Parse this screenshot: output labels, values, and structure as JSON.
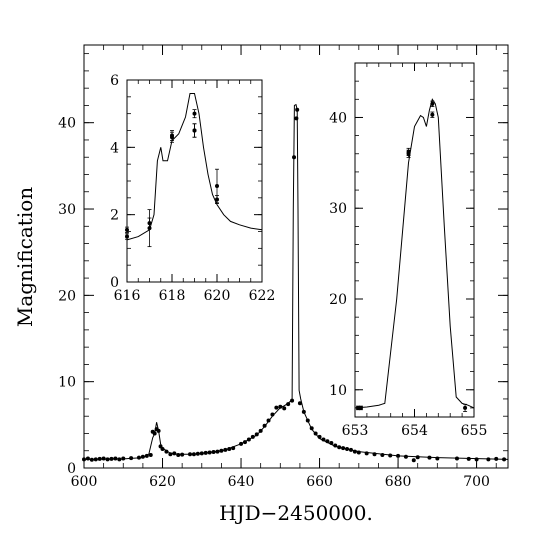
{
  "chart_data": [
    {
      "id": "main",
      "type": "line",
      "xlabel": "HJD−2450000.",
      "ylabel": "Magnification",
      "xlim": [
        600,
        708
      ],
      "ylim": [
        0,
        49
      ],
      "xticks": [
        600,
        620,
        640,
        660,
        680,
        700
      ],
      "xtick_labels": [
        "600",
        "620",
        "640",
        "660",
        "680",
        "700"
      ],
      "yticks": [
        0,
        10,
        20,
        30,
        40
      ],
      "ytick_labels": [
        "0",
        "10",
        "20",
        "30",
        "40"
      ],
      "grid": false,
      "model_curve": {
        "x": [
          600,
          610,
          615,
          616.5,
          617.5,
          618,
          618.5,
          619,
          619.5,
          620,
          621,
          622,
          624,
          628,
          632,
          636,
          640,
          644,
          646,
          648,
          650,
          651,
          652,
          653,
          653.3,
          653.6,
          654.0,
          654.3,
          654.5,
          654.8,
          655.2,
          656,
          658,
          660,
          664,
          670,
          680,
          690,
          708
        ],
        "y": [
          1.0,
          1.05,
          1.2,
          1.6,
          3.5,
          4.0,
          5.3,
          4.3,
          2.8,
          2.3,
          2.0,
          1.7,
          1.6,
          1.6,
          1.8,
          2.1,
          2.8,
          3.8,
          4.8,
          6.0,
          7.0,
          7.2,
          7.5,
          7.9,
          30.0,
          42.0,
          42.1,
          41.5,
          30.0,
          9.0,
          8.0,
          6.5,
          4.5,
          3.4,
          2.5,
          1.9,
          1.4,
          1.2,
          1.0
        ]
      },
      "points": {
        "x": [
          600,
          601,
          602,
          603,
          604,
          605,
          606,
          607,
          608,
          609,
          610,
          612,
          614,
          615,
          616,
          617,
          617.5,
          618,
          618.5,
          619,
          619.5,
          620,
          621,
          622,
          623,
          624,
          625,
          627,
          628,
          629,
          630,
          631,
          632,
          633,
          634,
          635,
          636,
          637,
          638,
          640,
          641,
          642,
          643,
          644,
          645,
          646,
          647,
          648,
          649,
          650,
          651,
          652,
          653,
          653.5,
          654.1,
          654.3,
          655,
          656,
          657,
          658,
          659,
          660,
          661,
          662,
          663,
          664,
          665,
          666,
          667,
          668,
          669,
          670,
          672,
          674,
          676,
          678,
          680,
          682,
          684,
          685,
          688,
          690,
          695,
          698,
          700,
          703,
          705,
          707
        ],
        "y": [
          1.0,
          1.1,
          0.95,
          1.0,
          1.05,
          1.1,
          1.0,
          1.05,
          1.1,
          1.0,
          1.1,
          1.15,
          1.2,
          1.3,
          1.4,
          1.5,
          4.2,
          4.0,
          4.5,
          4.3,
          2.5,
          2.2,
          1.9,
          1.6,
          1.7,
          1.5,
          1.55,
          1.6,
          1.6,
          1.65,
          1.7,
          1.75,
          1.8,
          1.85,
          1.9,
          2.0,
          2.1,
          2.2,
          2.3,
          2.8,
          3.0,
          3.3,
          3.6,
          3.9,
          4.3,
          4.9,
          5.5,
          6.2,
          7.0,
          7.1,
          6.9,
          7.4,
          7.8,
          36.0,
          40.5,
          41.5,
          7.5,
          6.5,
          5.5,
          4.6,
          4.0,
          3.6,
          3.3,
          3.1,
          2.9,
          2.6,
          2.4,
          2.3,
          2.2,
          2.1,
          1.9,
          1.8,
          1.7,
          1.6,
          1.5,
          1.45,
          1.4,
          1.3,
          0.9,
          1.25,
          1.2,
          1.1,
          1.1,
          1.05,
          1.0,
          1.0,
          1.05,
          1.0
        ]
      }
    },
    {
      "id": "inset_left",
      "type": "line",
      "xlim": [
        616,
        622
      ],
      "ylim": [
        0,
        6
      ],
      "xticks": [
        616,
        618,
        620,
        622
      ],
      "xtick_labels": [
        "616",
        "618",
        "620",
        "622"
      ],
      "yticks": [
        0,
        2,
        4,
        6
      ],
      "ytick_labels": [
        "0",
        "2",
        "4",
        "6"
      ],
      "grid": false,
      "model_curve": {
        "x": [
          616,
          616.5,
          617,
          617.2,
          617.35,
          617.5,
          617.6,
          617.8,
          618.0,
          618.3,
          618.6,
          618.8,
          619.0,
          619.2,
          619.4,
          619.6,
          619.8,
          620.0,
          620.3,
          620.6,
          621.0,
          621.5,
          622
        ],
        "y": [
          1.25,
          1.35,
          1.55,
          2.0,
          3.6,
          4.0,
          3.6,
          3.6,
          4.2,
          4.4,
          4.9,
          5.6,
          5.6,
          5.0,
          4.0,
          3.2,
          2.6,
          2.3,
          2.0,
          1.8,
          1.7,
          1.6,
          1.55
        ]
      },
      "points": {
        "x": [
          616.0,
          616.0,
          617.0,
          617.0,
          618.0,
          618.0,
          619.0,
          619.0,
          619.0,
          620.0,
          620.0
        ],
        "y": [
          1.35,
          1.55,
          1.6,
          1.75,
          4.3,
          4.35,
          4.5,
          4.5,
          5.0,
          2.45,
          2.85
        ],
        "err": [
          0.08,
          0.08,
          0.55,
          0.15,
          0.15,
          0.15,
          0.2,
          0.2,
          0.12,
          0.12,
          0.5
        ]
      }
    },
    {
      "id": "inset_right",
      "type": "line",
      "xlim": [
        653,
        655
      ],
      "ylim": [
        7,
        46
      ],
      "xticks": [
        653,
        654,
        655
      ],
      "xtick_labels": [
        "653",
        "654",
        "655"
      ],
      "yticks": [
        10,
        20,
        30,
        40
      ],
      "ytick_labels": [
        "10",
        "20",
        "30",
        "40"
      ],
      "grid": false,
      "model_curve": {
        "x": [
          653.0,
          653.2,
          653.4,
          653.5,
          653.7,
          653.9,
          654.0,
          654.1,
          654.15,
          654.2,
          654.25,
          654.3,
          654.35,
          654.4,
          654.5,
          654.6,
          654.7,
          654.8,
          654.9,
          655.0
        ],
        "y": [
          8.0,
          8.1,
          8.3,
          8.5,
          20.0,
          35.0,
          39.0,
          40.2,
          40.0,
          39.0,
          40.8,
          42.0,
          41.5,
          40.0,
          28.0,
          17.0,
          9.2,
          8.5,
          8.3,
          8.0
        ]
      },
      "points": {
        "x": [
          653.05,
          653.1,
          653.9,
          653.9,
          654.3,
          654.3,
          654.85
        ],
        "y": [
          8.0,
          8.0,
          36.0,
          36.2,
          40.3,
          41.5,
          8.0
        ],
        "err": [
          0.2,
          0.2,
          0.4,
          0.4,
          0.3,
          0.3,
          0.4
        ]
      }
    }
  ]
}
